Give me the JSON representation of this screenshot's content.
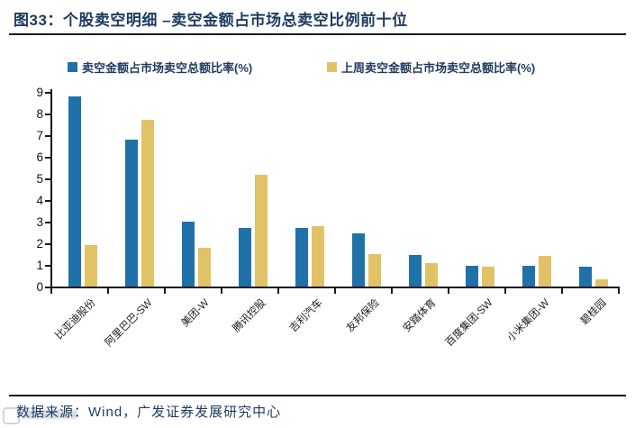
{
  "page": {
    "title": "图33：个股卖空明细 –卖空金额占市场总卖空比例前十位",
    "footer": "数据来源：Wind，广发证券发展研究中心"
  },
  "colors": {
    "title_navy": "#1e3a5f",
    "axis_black": "#1a1a1a",
    "series_blue": "#2171a9",
    "series_gold": "#e2c266"
  },
  "chart_data": {
    "type": "bar",
    "title": "个股卖空明细 –卖空金额占市场总卖空比例前十位",
    "categories": [
      "比亚迪股份",
      "阿里巴巴-SW",
      "美团-W",
      "腾讯控股",
      "吉利汽车",
      "友邦保险",
      "安踏体育",
      "百度集团-SW",
      "小米集团-W",
      "碧桂园"
    ],
    "series": [
      {
        "name": "卖空金额占市场卖空总额比率(%)",
        "color": "#2171a9",
        "values": [
          8.8,
          6.8,
          3.0,
          2.7,
          2.7,
          2.45,
          1.45,
          0.95,
          0.95,
          0.9
        ]
      },
      {
        "name": "上周卖空金额占市场卖空总额比率(%)",
        "color": "#e2c266",
        "values": [
          1.9,
          7.7,
          1.8,
          5.15,
          2.8,
          1.5,
          1.1,
          0.9,
          1.4,
          0.35
        ]
      }
    ],
    "xlabel": "",
    "ylabel": "",
    "ylim": [
      0,
      9
    ],
    "yticks": [
      0,
      1,
      2,
      3,
      4,
      5,
      6,
      7,
      8,
      9
    ],
    "grid": false,
    "legend_position": "top"
  }
}
